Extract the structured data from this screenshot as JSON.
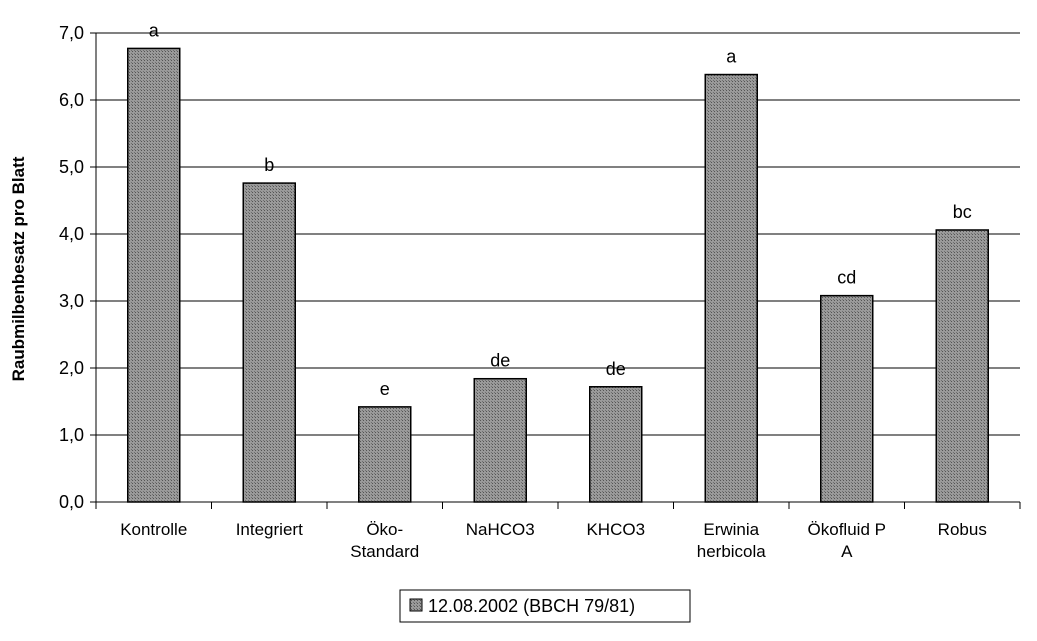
{
  "chart_data": {
    "type": "bar",
    "categories": [
      [
        "Kontrolle"
      ],
      [
        "Integriert"
      ],
      [
        "Öko-",
        "Standard"
      ],
      [
        "NaHCO3"
      ],
      [
        "KHCO3"
      ],
      [
        "Erwinia",
        "herbicola"
      ],
      [
        "Ökofluid P",
        "A"
      ],
      [
        "Robus"
      ]
    ],
    "series": [
      {
        "name": "12.08.2002 (BBCH 79/81)",
        "values": [
          6.77,
          4.76,
          1.42,
          1.84,
          1.72,
          6.38,
          3.08,
          4.06
        ],
        "significance": [
          "a",
          "b",
          "e",
          "de",
          "de",
          "a",
          "cd",
          "bc"
        ]
      }
    ],
    "ylabel": "Raubmilbenbesatz pro Blatt",
    "xlabel": "",
    "title": "",
    "ylim": [
      0,
      7
    ],
    "yticks": [
      "0,0",
      "1,0",
      "2,0",
      "3,0",
      "4,0",
      "5,0",
      "6,0",
      "7,0"
    ],
    "grid": "horizontal",
    "legend_position": "bottom-center",
    "colors": {
      "bar_fill": "#8c8c8c",
      "bar_stroke": "#000000",
      "grid": "#000000"
    }
  }
}
